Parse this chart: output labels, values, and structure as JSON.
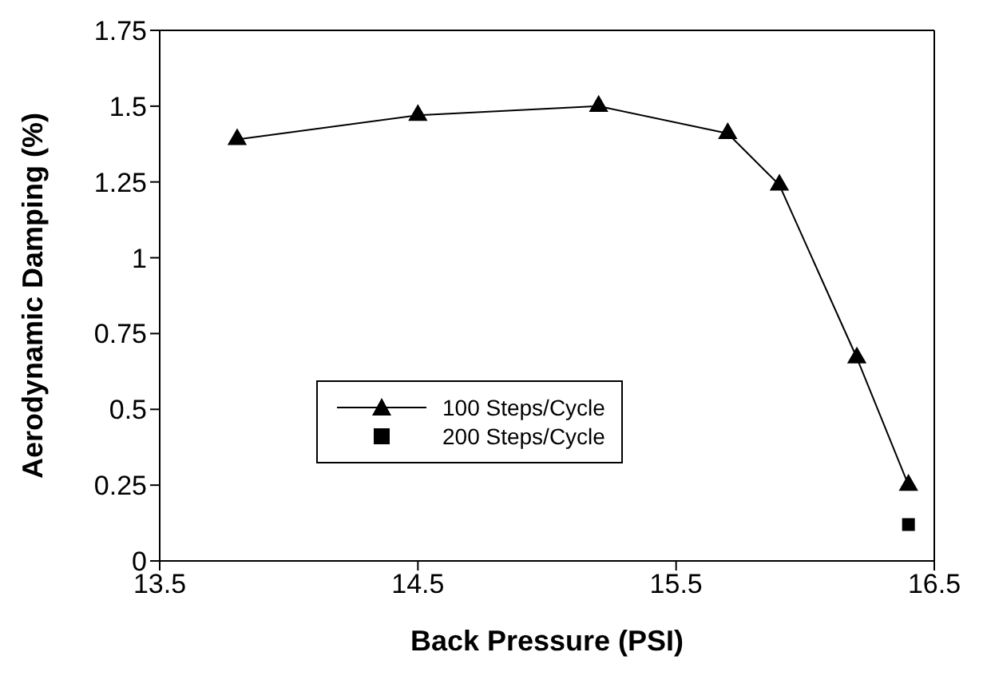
{
  "chart_data": {
    "type": "line",
    "xlabel": "Back Pressure (PSI)",
    "ylabel": "Aerodynamic Damping (%)",
    "xlim": [
      13.5,
      16.5
    ],
    "xticks": [
      13.5,
      14.5,
      15.5,
      16.5
    ],
    "ylim": [
      0,
      1.75
    ],
    "yticks": [
      0,
      0.25,
      0.5,
      0.75,
      1,
      1.25,
      1.5,
      1.75
    ],
    "legend": "bottom left",
    "series": [
      {
        "name": "100 Steps/Cycle",
        "type": "line",
        "marker": "triangle",
        "color": "#000000",
        "x": [
          13.8,
          14.5,
          15.2,
          15.7,
          15.9,
          16.2,
          16.4
        ],
        "values": [
          1.39,
          1.47,
          1.5,
          1.41,
          1.24,
          0.67,
          0.25
        ]
      },
      {
        "name": "200 Steps/Cycle",
        "type": "scatter",
        "marker": "square",
        "color": "#000000",
        "x": [
          16.4
        ],
        "values": [
          0.12
        ]
      }
    ]
  }
}
